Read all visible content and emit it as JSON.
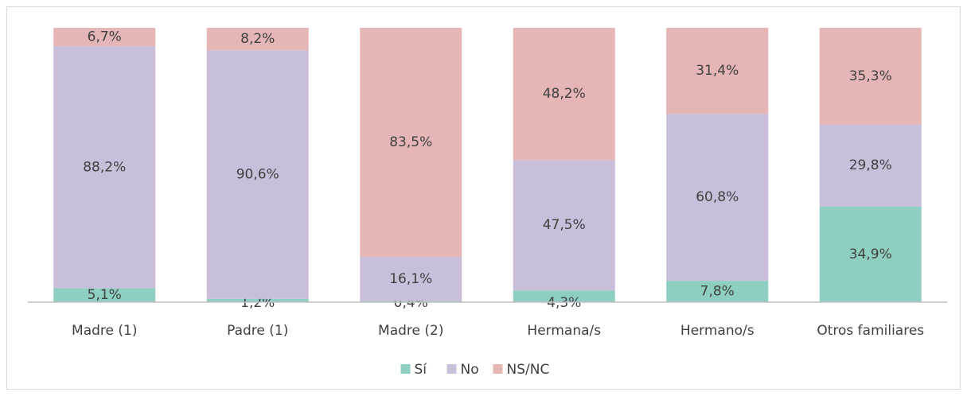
{
  "chart_data": {
    "type": "stacked_bar",
    "categories": [
      "Madre (1)",
      "Padre (1)",
      "Madre (2)",
      "Hermana/s",
      "Hermano/s",
      "Otros familiares"
    ],
    "series": [
      {
        "name": "Sí",
        "color": "#8ecfc1",
        "values": [
          5.1,
          1.2,
          0.4,
          4.3,
          7.8,
          34.9
        ],
        "value_labels": [
          "5,1%",
          "1,2%",
          "0,4%",
          "4,3%",
          "7,8%",
          "34,9%"
        ]
      },
      {
        "name": "No",
        "color": "#c9bfdb",
        "values": [
          88.2,
          90.6,
          16.1,
          47.5,
          60.8,
          29.8
        ],
        "value_labels": [
          "88,2%",
          "90,6%",
          "16,1%",
          "47,5%",
          "60,8%",
          "29,8%"
        ]
      },
      {
        "name": "NS/NC",
        "color": "#e6b5b5",
        "values": [
          6.7,
          8.2,
          83.5,
          48.2,
          31.4,
          35.3
        ],
        "value_labels": [
          "6,7%",
          "8,2%",
          "83,5%",
          "48,2%",
          "31,4%",
          "35,3%"
        ]
      }
    ],
    "ylim": [
      0,
      100
    ],
    "legend": "bottom"
  }
}
